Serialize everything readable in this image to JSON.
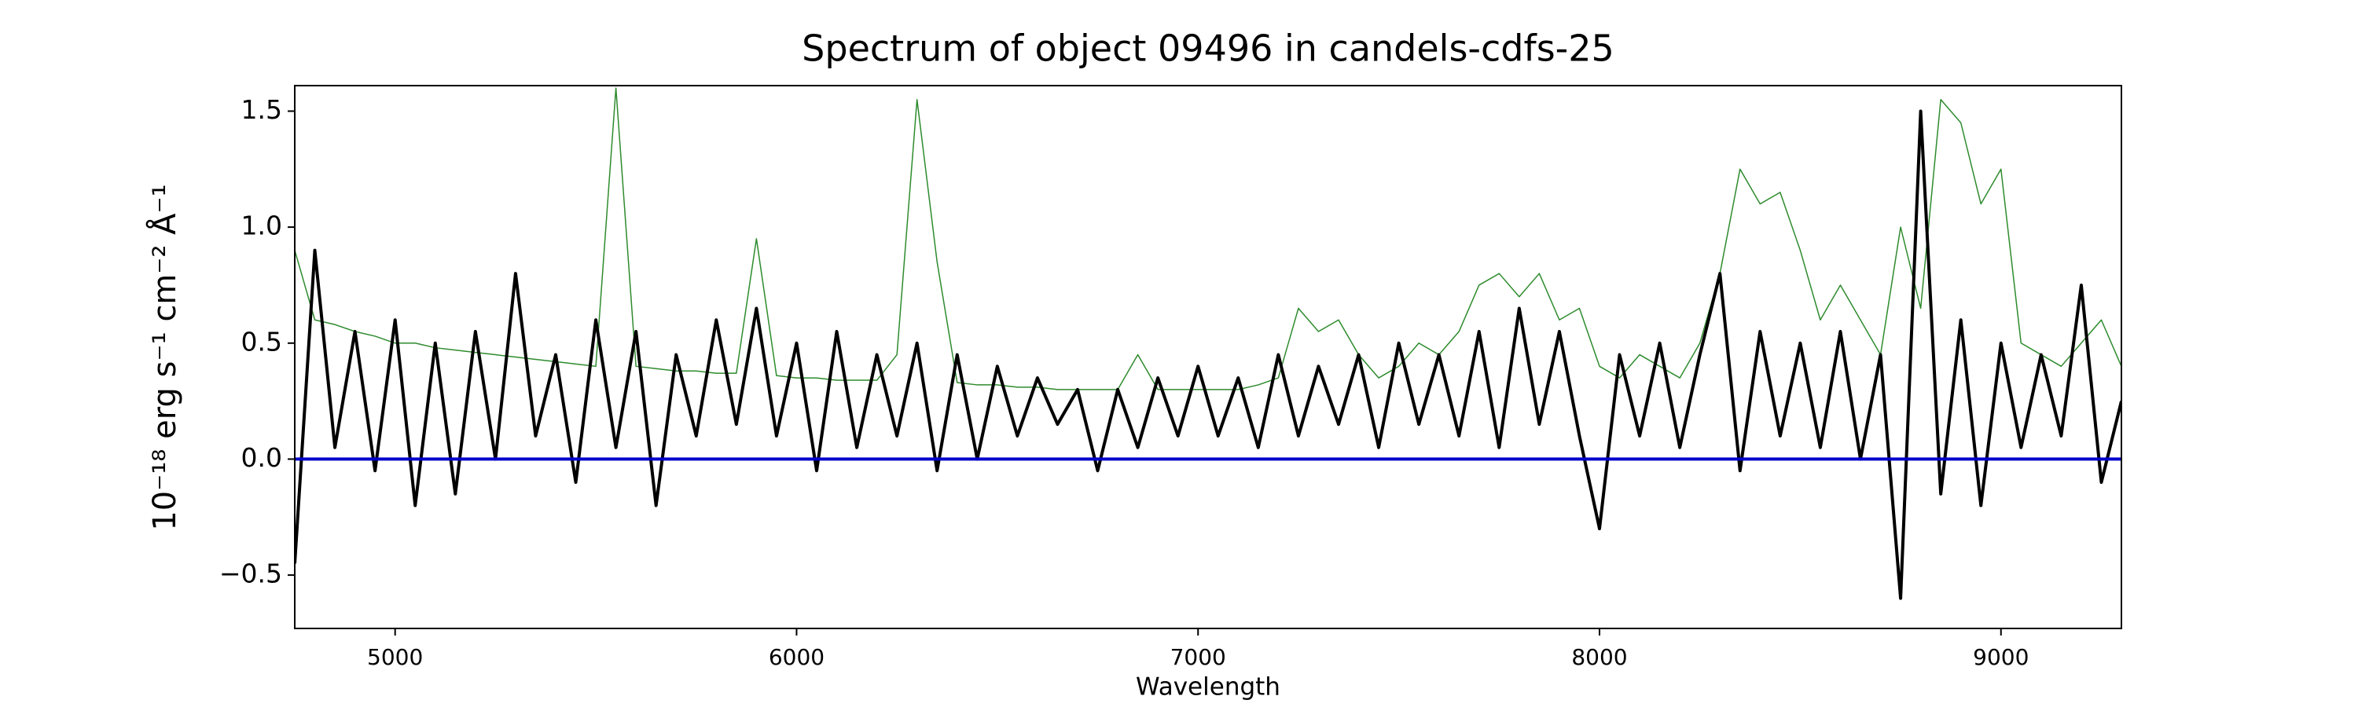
{
  "chart_data": {
    "type": "line",
    "title": "Spectrum of object 09496 in candels-cdfs-25",
    "x_label": "Wavelength",
    "y_label": "10⁻¹⁸ erg s⁻¹ cm⁻² Å⁻¹",
    "x": [
      4750,
      4800,
      4850,
      4900,
      4950,
      5000,
      5050,
      5100,
      5150,
      5200,
      5250,
      5300,
      5350,
      5400,
      5450,
      5500,
      5550,
      5600,
      5650,
      5700,
      5750,
      5800,
      5850,
      5900,
      5950,
      6000,
      6050,
      6100,
      6150,
      6200,
      6250,
      6300,
      6350,
      6400,
      6450,
      6500,
      6550,
      6600,
      6650,
      6700,
      6750,
      6800,
      6850,
      6900,
      6950,
      7000,
      7050,
      7100,
      7150,
      7200,
      7250,
      7300,
      7350,
      7400,
      7450,
      7500,
      7550,
      7600,
      7650,
      7700,
      7750,
      7800,
      7850,
      7900,
      7950,
      8000,
      8050,
      8100,
      8150,
      8200,
      8250,
      8300,
      8350,
      8400,
      8450,
      8500,
      8550,
      8600,
      8650,
      8700,
      8750,
      8800,
      8850,
      8900,
      8950,
      9000,
      9050,
      9100,
      9150,
      9200,
      9250,
      9300
    ],
    "series": [
      {
        "color": "#2e8b2e",
        "width": 1.5,
        "values": [
          0.9,
          0.6,
          0.58,
          0.55,
          0.53,
          0.5,
          0.5,
          0.48,
          0.47,
          0.46,
          0.45,
          0.44,
          0.43,
          0.42,
          0.41,
          0.4,
          1.6,
          0.4,
          0.39,
          0.38,
          0.38,
          0.37,
          0.37,
          0.95,
          0.36,
          0.35,
          0.35,
          0.34,
          0.34,
          0.34,
          0.45,
          1.55,
          0.85,
          0.33,
          0.32,
          0.32,
          0.31,
          0.31,
          0.3,
          0.3,
          0.3,
          0.3,
          0.45,
          0.3,
          0.3,
          0.3,
          0.3,
          0.3,
          0.32,
          0.35,
          0.65,
          0.55,
          0.6,
          0.45,
          0.35,
          0.4,
          0.5,
          0.45,
          0.55,
          0.75,
          0.8,
          0.7,
          0.8,
          0.6,
          0.65,
          0.4,
          0.35,
          0.45,
          0.4,
          0.35,
          0.5,
          0.8,
          1.25,
          1.1,
          1.15,
          0.9,
          0.6,
          0.75,
          0.6,
          0.45,
          1.0,
          0.65,
          1.55,
          1.45,
          1.1,
          1.25,
          0.5,
          0.45,
          0.4,
          0.5,
          0.6,
          0.4
        ]
      },
      {
        "color": "#000000",
        "width": 4,
        "values": [
          -0.45,
          0.9,
          0.05,
          0.55,
          -0.05,
          0.6,
          -0.2,
          0.5,
          -0.15,
          0.55,
          0.0,
          0.8,
          0.1,
          0.45,
          -0.1,
          0.6,
          0.05,
          0.55,
          -0.2,
          0.45,
          0.1,
          0.6,
          0.15,
          0.65,
          0.1,
          0.5,
          -0.05,
          0.55,
          0.05,
          0.45,
          0.1,
          0.5,
          -0.05,
          0.45,
          0.0,
          0.4,
          0.1,
          0.35,
          0.15,
          0.3,
          -0.05,
          0.3,
          0.05,
          0.35,
          0.1,
          0.4,
          0.1,
          0.35,
          0.05,
          0.45,
          0.1,
          0.4,
          0.15,
          0.45,
          0.05,
          0.5,
          0.15,
          0.45,
          0.1,
          0.55,
          0.05,
          0.65,
          0.15,
          0.55,
          0.1,
          -0.3,
          0.45,
          0.1,
          0.5,
          0.05,
          0.45,
          0.8,
          -0.05,
          0.55,
          0.1,
          0.5,
          0.05,
          0.55,
          0.0,
          0.45,
          -0.6,
          1.5,
          -0.15,
          0.6,
          -0.2,
          0.5,
          0.05,
          0.45,
          0.1,
          0.75,
          -0.1,
          0.25
        ]
      },
      {
        "color": "#0000cc",
        "width": 4,
        "x": [
          4750,
          9300
        ],
        "values": [
          0,
          0
        ]
      }
    ],
    "xlim": [
      4750,
      9300
    ],
    "ylim": [
      -0.73,
      1.61
    ],
    "xticks": [
      5000,
      6000,
      7000,
      8000,
      9000
    ],
    "yticks": [
      {
        "value": -0.5,
        "label": "−0.5"
      },
      {
        "value": 0,
        "label": "0.0"
      },
      0.5,
      {
        "value": 1,
        "label": "1.0"
      },
      1.5
    ]
  }
}
